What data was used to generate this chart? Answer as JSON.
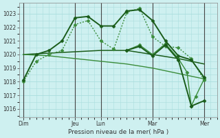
{
  "background_color": "#cef0f0",
  "plot_bg_color": "#cef0f0",
  "grid_color": "#aadddd",
  "xlabel": "Pression niveau de la mer( hPa )",
  "ylim": [
    1015.4,
    1023.8
  ],
  "yticks": [
    1016,
    1017,
    1018,
    1019,
    1020,
    1021,
    1022,
    1023
  ],
  "xday_labels": [
    "Dim",
    "Jeu",
    "Lun",
    "Mar",
    "Mer"
  ],
  "xday_positions": [
    0,
    24,
    36,
    60,
    84
  ],
  "xlim": [
    -2,
    90
  ],
  "dark_color": "#1a5c1a",
  "light_color": "#3a8c3a",
  "series": [
    {
      "x": [
        0,
        6,
        12,
        18,
        24,
        30,
        36,
        42,
        48,
        54,
        60,
        66,
        72,
        78,
        84
      ],
      "y": [
        1018.1,
        1020.0,
        1020.3,
        1021.0,
        1022.7,
        1022.8,
        1022.1,
        1022.1,
        1023.2,
        1023.3,
        1022.5,
        1021.0,
        1019.9,
        1019.6,
        1018.3
      ],
      "color": "#1a5c1a",
      "linewidth": 1.4,
      "linestyle": "solid",
      "marker": "D",
      "markersize": 2.5,
      "zorder": 5
    },
    {
      "x": [
        0,
        6,
        12,
        18,
        24,
        30,
        36,
        42,
        48,
        54,
        60,
        66,
        72,
        78,
        84
      ],
      "y": [
        1018.0,
        1019.5,
        1020.0,
        1020.3,
        1022.2,
        1022.5,
        1021.0,
        1020.4,
        1023.1,
        1023.4,
        1021.3,
        1020.6,
        1020.5,
        1019.7,
        1018.1
      ],
      "color": "#3a8c3a",
      "linewidth": 1.0,
      "linestyle": "dotted",
      "marker": "D",
      "markersize": 2.5,
      "zorder": 4
    },
    {
      "x": [
        0,
        12,
        24,
        36,
        48,
        60,
        72,
        84
      ],
      "y": [
        1020.0,
        1020.1,
        1020.2,
        1020.3,
        1020.3,
        1020.0,
        1019.7,
        1019.3
      ],
      "color": "#1a5c1a",
      "linewidth": 1.1,
      "linestyle": "solid",
      "marker": "None",
      "markersize": 0,
      "zorder": 3
    },
    {
      "x": [
        0,
        12,
        24,
        36,
        48,
        60,
        72,
        84
      ],
      "y": [
        1020.0,
        1019.9,
        1019.7,
        1019.5,
        1019.3,
        1019.0,
        1018.6,
        1018.2
      ],
      "color": "#3a8c3a",
      "linewidth": 1.0,
      "linestyle": "solid",
      "marker": "None",
      "markersize": 0,
      "zorder": 3
    },
    {
      "x": [
        48,
        54,
        60,
        66,
        72,
        78,
        84
      ],
      "y": [
        1020.3,
        1020.6,
        1019.9,
        1020.7,
        1019.6,
        1016.2,
        1016.6
      ],
      "color": "#1a5c1a",
      "linewidth": 1.4,
      "linestyle": "solid",
      "marker": "D",
      "markersize": 2.5,
      "zorder": 5
    },
    {
      "x": [
        48,
        54,
        60,
        66,
        72,
        76,
        78,
        80,
        84
      ],
      "y": [
        1020.3,
        1020.7,
        1020.0,
        1020.8,
        1019.7,
        1018.7,
        1016.2,
        1016.9,
        1018.2
      ],
      "color": "#3a8c3a",
      "linewidth": 1.0,
      "linestyle": "solid",
      "marker": "D",
      "markersize": 2.5,
      "zorder": 4
    }
  ]
}
